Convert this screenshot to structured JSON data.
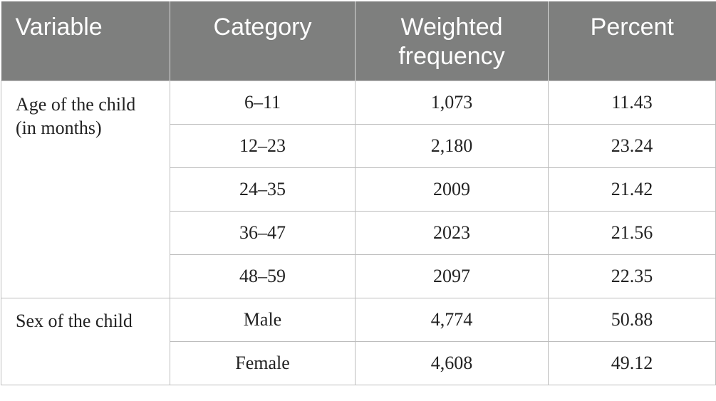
{
  "table": {
    "headers": {
      "variable": "Variable",
      "category": "Category",
      "weighted_frequency_line1": "Weighted",
      "weighted_frequency_line2": "frequency",
      "percent": "Percent"
    },
    "groups": [
      {
        "variable_line1": "Age of the child",
        "variable_line2": "(in months)",
        "rows": [
          {
            "category": "6–11",
            "weighted_frequency": "1,073",
            "percent": "11.43"
          },
          {
            "category": "12–23",
            "weighted_frequency": "2,180",
            "percent": "23.24"
          },
          {
            "category": "24–35",
            "weighted_frequency": "2009",
            "percent": "21.42"
          },
          {
            "category": "36–47",
            "weighted_frequency": "2023",
            "percent": "21.56"
          },
          {
            "category": "48–59",
            "weighted_frequency": "2097",
            "percent": "22.35"
          }
        ]
      },
      {
        "variable_line1": "Sex of the child",
        "rows": [
          {
            "category": "Male",
            "weighted_frequency": "4,774",
            "percent": "50.88"
          },
          {
            "category": "Female",
            "weighted_frequency": "4,608",
            "percent": "49.12"
          }
        ]
      }
    ]
  }
}
